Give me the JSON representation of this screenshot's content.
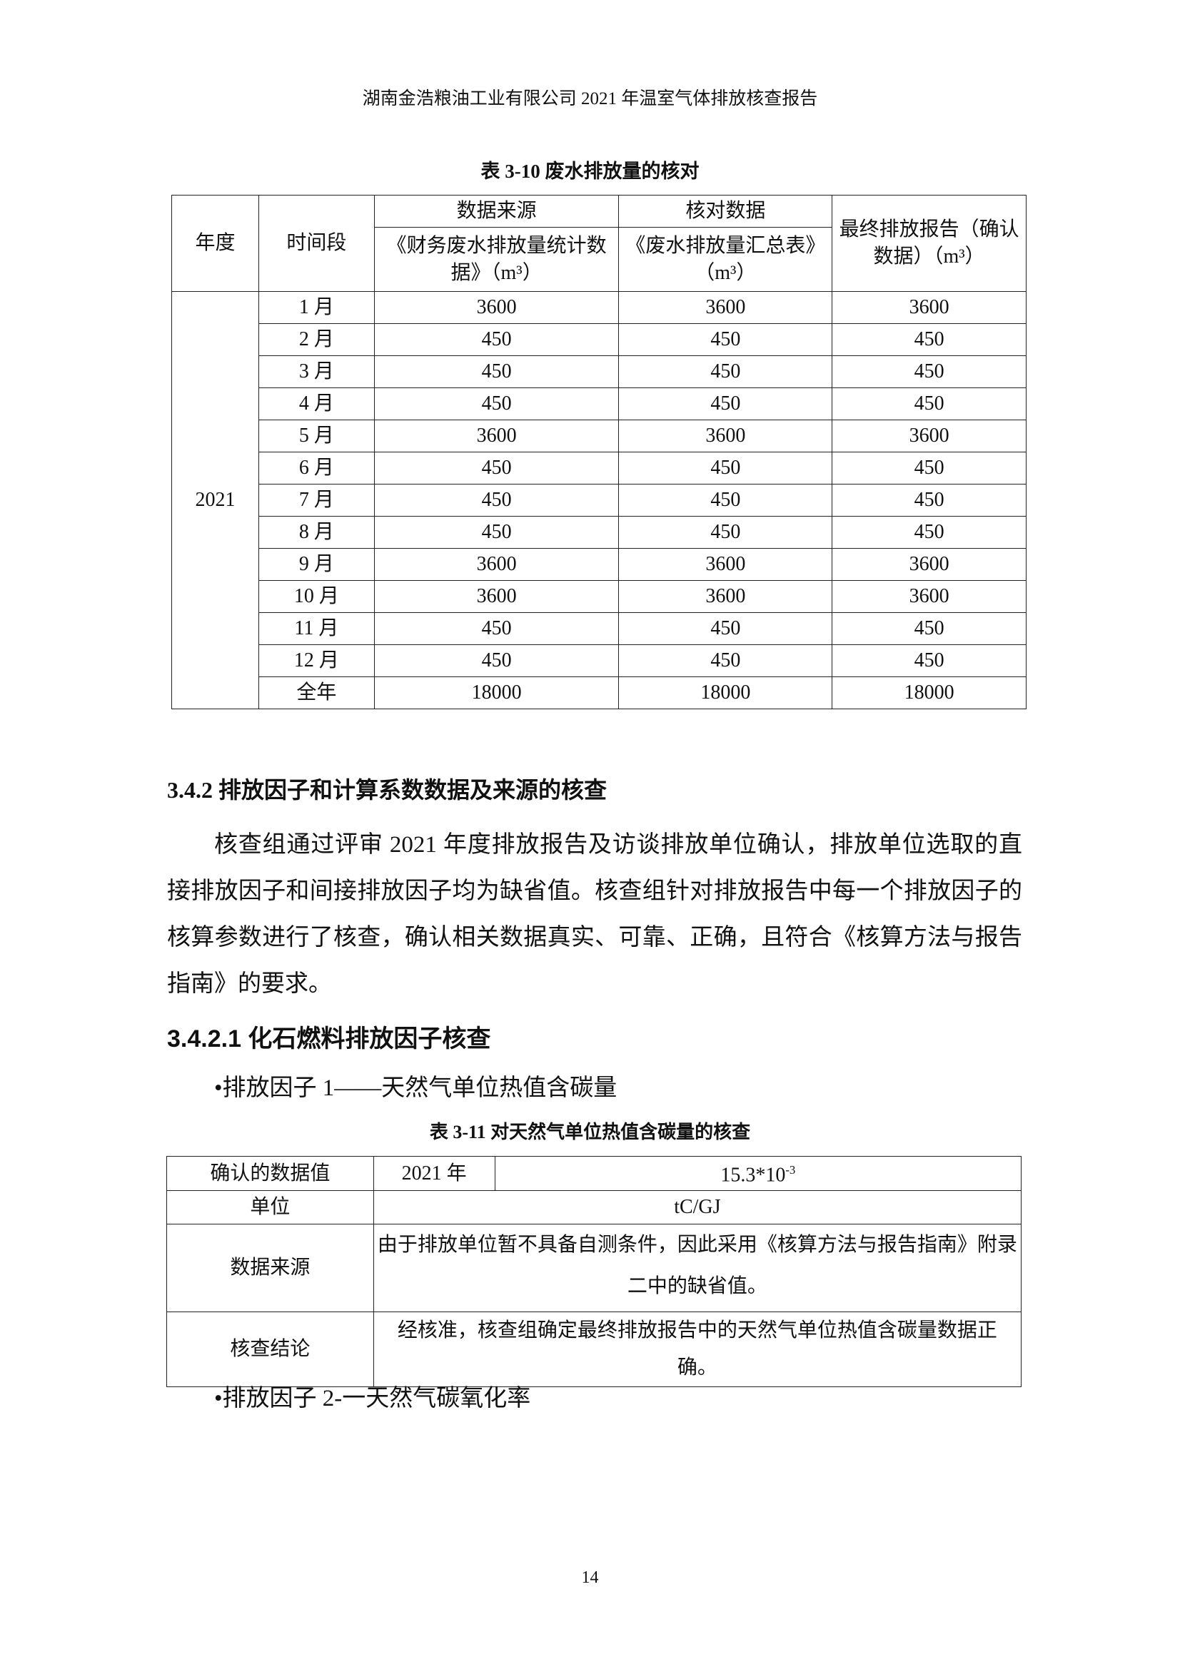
{
  "header": "湖南金浩粮油工业有限公司 2021 年温室气体排放核查报告",
  "table1": {
    "caption": "表 3-10 废水排放量的核对",
    "headers": {
      "year": "年度",
      "period": "时间段",
      "source": "数据来源",
      "check": "核对数据",
      "final": "最终排放报告（确认数据）（m³）",
      "source_sub": "《财务废水排放量统计数据》（m³）",
      "check_sub": "《废水排放量汇总表》（m³）"
    },
    "year": "2021",
    "rows": [
      [
        "1 月",
        "3600",
        "3600",
        "3600"
      ],
      [
        "2 月",
        "450",
        "450",
        "450"
      ],
      [
        "3 月",
        "450",
        "450",
        "450"
      ],
      [
        "4 月",
        "450",
        "450",
        "450"
      ],
      [
        "5 月",
        "3600",
        "3600",
        "3600"
      ],
      [
        "6 月",
        "450",
        "450",
        "450"
      ],
      [
        "7 月",
        "450",
        "450",
        "450"
      ],
      [
        "8 月",
        "450",
        "450",
        "450"
      ],
      [
        "9 月",
        "3600",
        "3600",
        "3600"
      ],
      [
        "10 月",
        "3600",
        "3600",
        "3600"
      ],
      [
        "11 月",
        "450",
        "450",
        "450"
      ],
      [
        "12 月",
        "450",
        "450",
        "450"
      ],
      [
        "全年",
        "18000",
        "18000",
        "18000"
      ]
    ]
  },
  "section_342": "3.4.2 排放因子和计算系数数据及来源的核查",
  "paragraph": "核查组通过评审 2021 年度排放报告及访谈排放单位确认，排放单位选取的直接排放因子和间接排放因子均为缺省值。核查组针对排放报告中每一个排放因子的核算参数进行了核查，确认相关数据真实、可靠、正确，且符合《核算方法与报告指南》的要求。",
  "section_3421": "3.4.2.1 化石燃料排放因子核查",
  "bullet1": "•排放因子 1——天然气单位热值含碳量",
  "table2": {
    "caption": "表 3-11 对天然气单位热值含碳量的核查",
    "confirmed_label": "确认的数据值",
    "year": "2021 年",
    "value_base": "15.3*10",
    "value_exp": "-3",
    "unit_label": "单位",
    "unit": "tC/GJ",
    "source_label": "数据来源",
    "source": "由于排放单位暂不具备自测条件，因此采用《核算方法与报告指南》附录二中的缺省值。",
    "conclusion_label": "核查结论",
    "conclusion": "经核准，核查组确定最终排放报告中的天然气单位热值含碳量数据正确。"
  },
  "bullet2": "•排放因子 2-一天然气碳氧化率",
  "page_number": "14"
}
